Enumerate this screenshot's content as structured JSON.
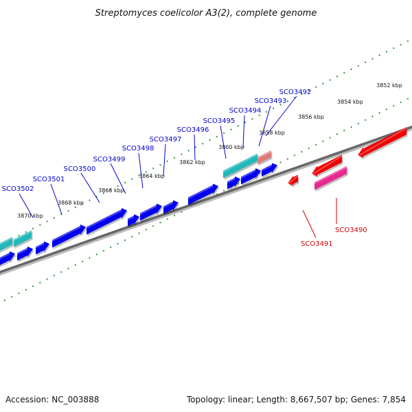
{
  "title": "Streptomyces coelicolor A3(2), complete genome",
  "footer": {
    "accession": "Accession: NC_003888",
    "summary": "Topology: linear; Length: 8,667,507 bp; Genes: 7,854"
  },
  "colors": {
    "forward_label": "#0000cc",
    "reverse_label": "#cc0000",
    "tick": "#1f8a1f",
    "backbone": "#666666"
  },
  "ruler": [
    {
      "label": "3852 kbp",
      "kbp": 3852
    },
    {
      "label": "3854 kbp",
      "kbp": 3854
    },
    {
      "label": "3856 kbp",
      "kbp": 3856
    },
    {
      "label": "3858 kbp",
      "kbp": 3858
    },
    {
      "label": "3860 kbp",
      "kbp": 3860
    },
    {
      "label": "3862 kbp",
      "kbp": 3862
    },
    {
      "label": "3864 kbp",
      "kbp": 3864
    },
    {
      "label": "3866 kbp",
      "kbp": 3866
    },
    {
      "label": "3868 kbp",
      "kbp": 3868
    },
    {
      "label": "3870 kbp",
      "kbp": 3870
    }
  ],
  "genes": [
    {
      "id": "SCO3490",
      "strand": "reverse"
    },
    {
      "id": "SCO3491",
      "strand": "reverse"
    },
    {
      "id": "SCO3492",
      "strand": "forward"
    },
    {
      "id": "SCO3493",
      "strand": "forward"
    },
    {
      "id": "SCO3494",
      "strand": "forward"
    },
    {
      "id": "SCO3495",
      "strand": "forward"
    },
    {
      "id": "SCO3496",
      "strand": "forward"
    },
    {
      "id": "SCO3497",
      "strand": "forward"
    },
    {
      "id": "SCO3498",
      "strand": "forward"
    },
    {
      "id": "SCO3499",
      "strand": "forward"
    },
    {
      "id": "SCO3500",
      "strand": "forward"
    },
    {
      "id": "SCO3501",
      "strand": "forward"
    },
    {
      "id": "SCO3502",
      "strand": "forward"
    }
  ]
}
